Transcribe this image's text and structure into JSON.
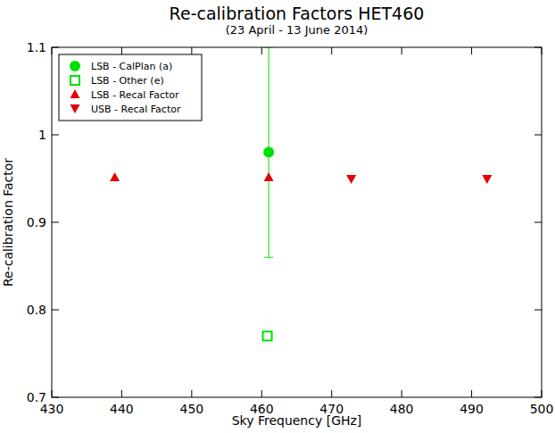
{
  "chart_data": {
    "type": "scatter",
    "title": "Re-calibration Factors HET460",
    "subtitle": "(23 April - 13 June 2014)",
    "x_label": "Sky Frequency [GHz]",
    "y_label": "Re-calibration Factor",
    "xlim": [
      430,
      500
    ],
    "xticks": [
      430,
      440,
      450,
      460,
      470,
      480,
      490,
      500
    ],
    "ylim": [
      0.7,
      1.1
    ],
    "yticks": [
      0.7,
      0.8,
      0.9,
      1,
      1.1
    ],
    "legend": "upper-left",
    "series": [
      {
        "name": "LSB - CalPlan (a)",
        "color": "#00e000",
        "marker": "circle",
        "x": [
          461
        ],
        "values": [
          0.98
        ],
        "errors": [
          0.12
        ]
      },
      {
        "name": "LSB - Other (e)",
        "color": "#00e000",
        "marker": "hollow-square",
        "x": [
          460.8
        ],
        "values": [
          0.77
        ]
      },
      {
        "name": "LSB - Recal Factor",
        "color": "#e60000",
        "marker": "triangle-up",
        "x": [
          439,
          461
        ],
        "values": [
          0.951,
          0.951
        ]
      },
      {
        "name": "USB - Recal Factor",
        "color": "#e60000",
        "marker": "triangle-down",
        "x": [
          472.8,
          492.2
        ],
        "values": [
          0.949,
          0.949
        ]
      }
    ]
  }
}
